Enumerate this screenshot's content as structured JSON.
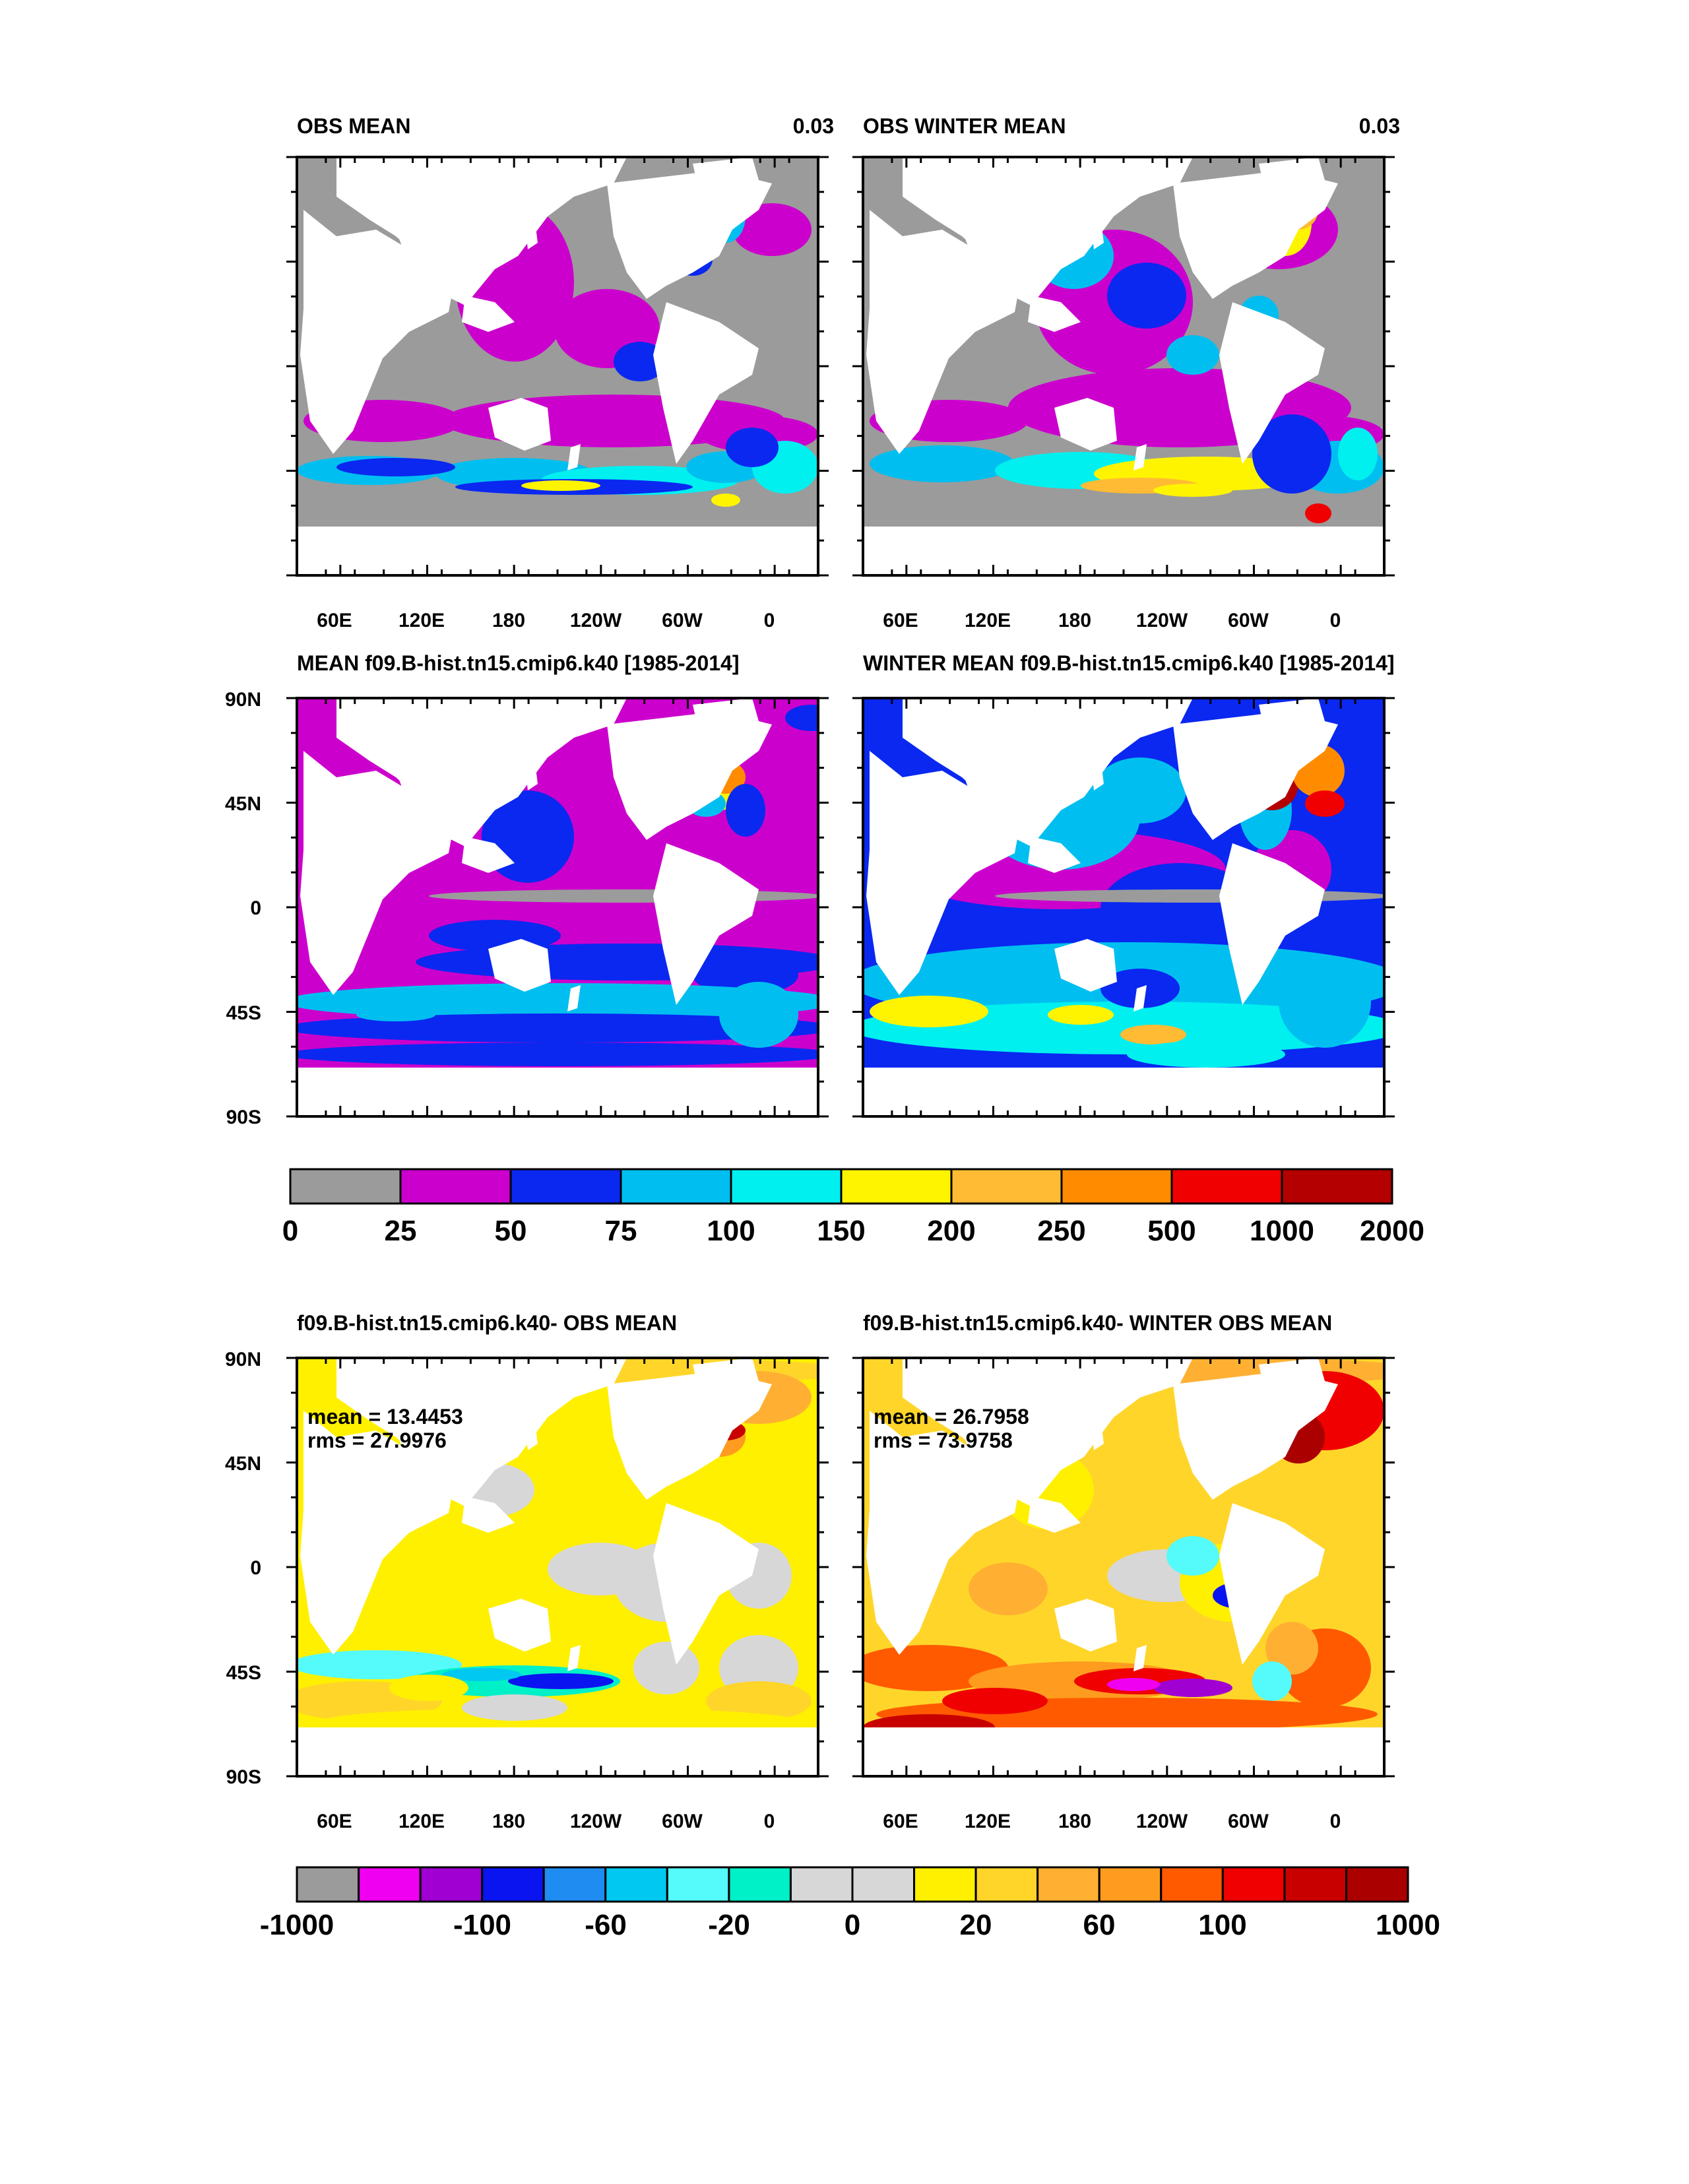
{
  "colors": {
    "land": "#ffffff",
    "frame": "#000000",
    "abs_scale": [
      "#9b9b9b",
      "#cc00cc",
      "#0a28f0",
      "#00bff0",
      "#00f0f0",
      "#fff400",
      "#ffbb33",
      "#ff8c00",
      "#f00000",
      "#b40000"
    ],
    "diff_scale": [
      "#9b9b9b",
      "#f000f0",
      "#a000d2",
      "#0a14f0",
      "#1e8cf0",
      "#00c8f0",
      "#55fafa",
      "#00f0c8",
      "#d7d7d7",
      "#d7d7d7",
      "#fff000",
      "#ffd52a",
      "#ffb033",
      "#ff9b1e",
      "#ff5a00",
      "#f00000",
      "#c80000",
      "#aa0000"
    ]
  },
  "panels": [
    {
      "id": "obs_mean",
      "title_left": "OBS MEAN",
      "title_right": "0.03",
      "lat_labels": [],
      "lon_labels": [
        "60E",
        "120E",
        "180",
        "120W",
        "60W",
        "0"
      ],
      "stats": [],
      "field": "abs_low",
      "scheme": "abs_scale"
    },
    {
      "id": "obs_winter_mean",
      "title_left": "OBS WINTER MEAN",
      "title_right": "0.03",
      "lat_labels": [],
      "lon_labels": [
        "60E",
        "120E",
        "180",
        "120W",
        "60W",
        "0"
      ],
      "stats": [],
      "field": "abs_winter",
      "scheme": "abs_scale"
    },
    {
      "id": "model_mean",
      "title_left": "MEAN f09.B-hist.tn15.cmip6.k40 [1985-2014]",
      "title_right": "",
      "lat_labels": [
        "90N",
        "45N",
        "0",
        "45S",
        "90S"
      ],
      "lon_labels": [],
      "stats": [],
      "field": "abs_model",
      "scheme": "abs_scale"
    },
    {
      "id": "model_winter_mean",
      "title_left": "WINTER MEAN f09.B-hist.tn15.cmip6.k40 [1985-2014]",
      "title_right": "",
      "lat_labels": [],
      "lon_labels": [],
      "stats": [],
      "field": "abs_model_winter",
      "scheme": "abs_scale"
    },
    {
      "id": "diff_mean",
      "title_left": "f09.B-hist.tn15.cmip6.k40- OBS MEAN",
      "title_right": "",
      "lat_labels": [
        "90N",
        "45N",
        "0",
        "45S",
        "90S"
      ],
      "lon_labels": [
        "60E",
        "120E",
        "180",
        "120W",
        "60W",
        "0"
      ],
      "stats": [
        "mean = 13.4453",
        "rms = 27.9976"
      ],
      "field": "diff",
      "scheme": "diff_scale"
    },
    {
      "id": "diff_winter_mean",
      "title_left": "f09.B-hist.tn15.cmip6.k40- WINTER OBS MEAN",
      "title_right": "",
      "lat_labels": [],
      "lon_labels": [
        "60E",
        "120E",
        "180",
        "120W",
        "60W",
        "0"
      ],
      "stats": [
        "mean = 26.7958",
        "rms = 73.9758"
      ],
      "field": "diff_winter",
      "scheme": "diff_scale"
    }
  ],
  "colorbars": [
    {
      "id": "abs",
      "scheme": "abs_scale",
      "labels": [
        "0",
        "25",
        "50",
        "75",
        "100",
        "150",
        "200",
        "250",
        "500",
        "1000",
        "2000"
      ]
    },
    {
      "id": "diff",
      "scheme": "diff_scale",
      "labels": [
        "-1000",
        "-100",
        "-60",
        "-20",
        "0",
        "20",
        "60",
        "100",
        "1000"
      ]
    }
  ]
}
